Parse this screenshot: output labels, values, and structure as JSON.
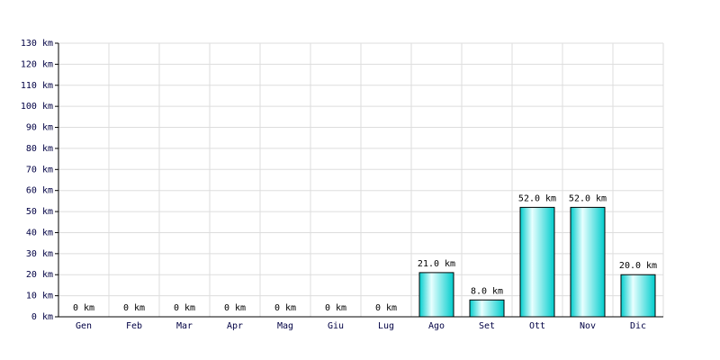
{
  "chart_data": {
    "type": "bar",
    "categories": [
      "Gen",
      "Feb",
      "Mar",
      "Apr",
      "Mag",
      "Giu",
      "Lug",
      "Ago",
      "Set",
      "Ott",
      "Nov",
      "Dic"
    ],
    "values": [
      0,
      0,
      0,
      0,
      0,
      0,
      0,
      21,
      8,
      52,
      52,
      20
    ],
    "value_labels": [
      "0 km",
      "0 km",
      "0 km",
      "0 km",
      "0 km",
      "0 km",
      "0 km",
      "21.0 km",
      "8.0 km",
      "52.0 km",
      "52.0 km",
      "20.0 km"
    ],
    "color": "#00cccc",
    "ylim": [
      0,
      130
    ],
    "yticks": [
      {
        "value": 0,
        "label": "0 km"
      },
      {
        "value": 10,
        "label": "10 km"
      },
      {
        "value": 20,
        "label": "20 km"
      },
      {
        "value": 30,
        "label": "30 km"
      },
      {
        "value": 40,
        "label": "40 km"
      },
      {
        "value": 50,
        "label": "50 km"
      },
      {
        "value": 60,
        "label": "60 km"
      },
      {
        "value": 70,
        "label": "70 km"
      },
      {
        "value": 80,
        "label": "80 km"
      },
      {
        "value": 90,
        "label": "90 km"
      },
      {
        "value": 100,
        "label": "100 km"
      },
      {
        "value": 110,
        "label": "110 km"
      },
      {
        "value": 120,
        "label": "120 km"
      },
      {
        "value": 130,
        "label": "130 km"
      }
    ],
    "grid": true
  }
}
